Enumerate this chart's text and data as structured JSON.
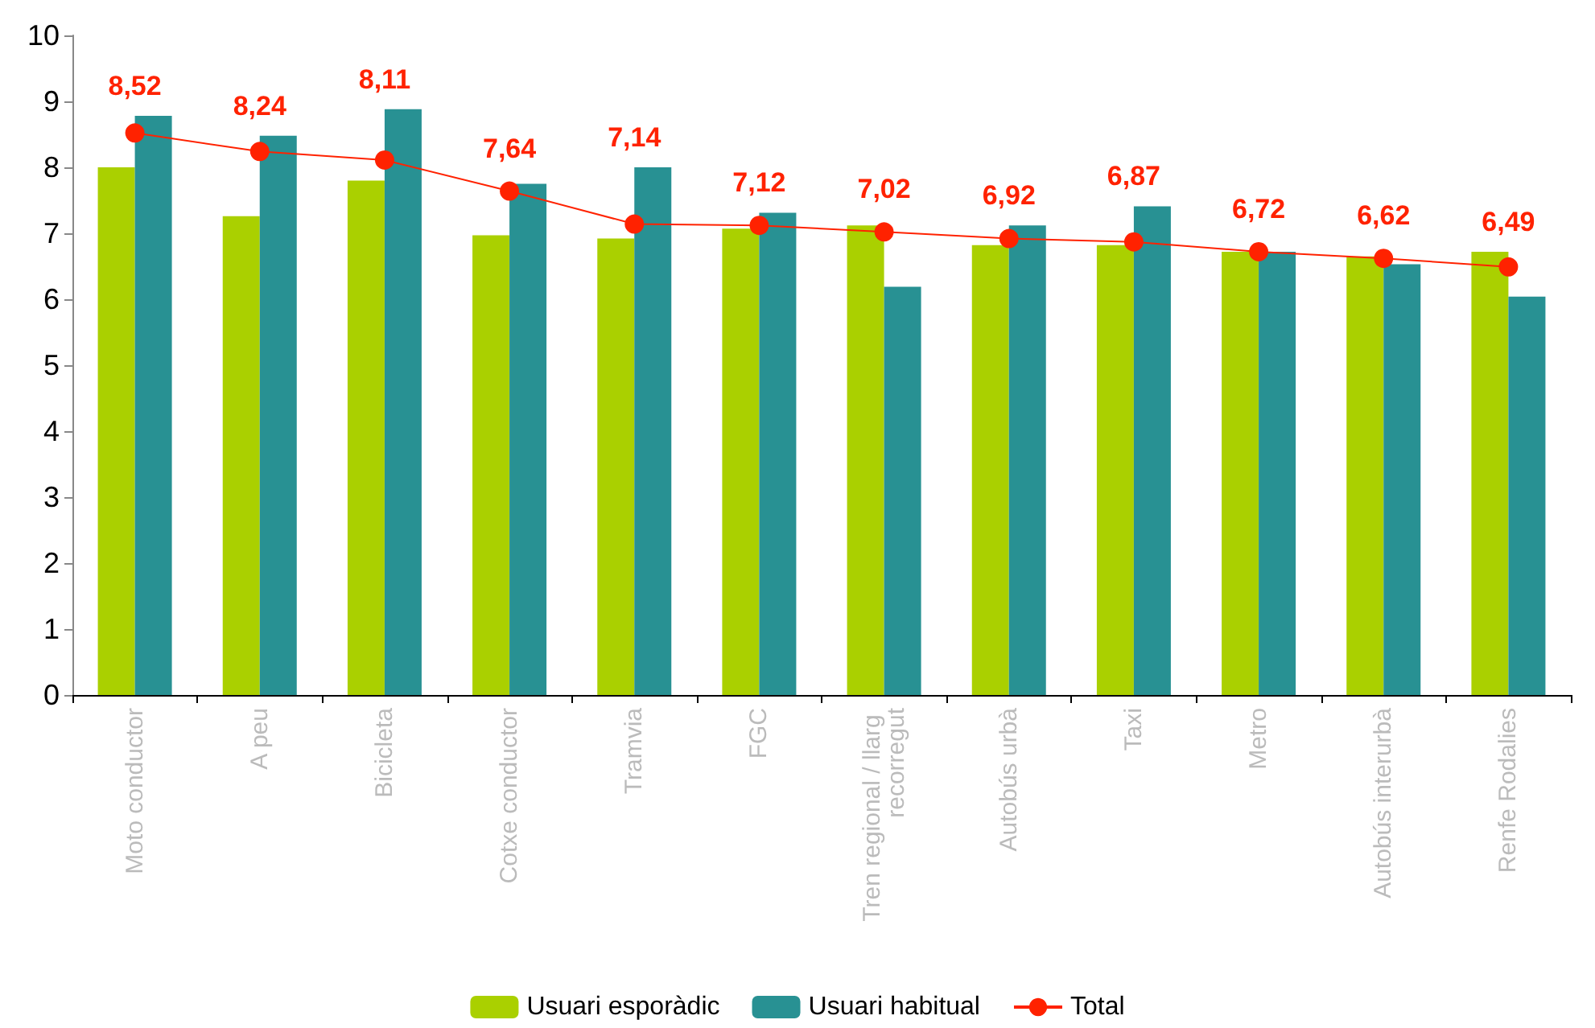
{
  "chart_data": {
    "type": "bar",
    "categories": [
      "Moto conductor",
      "A peu",
      "Bicicleta",
      "Cotxe conductor",
      "Tramvia",
      "FGC",
      "Tren regional / llarg recorregut",
      "Autobús urbà",
      "Taxi",
      "Metro",
      "Autobús interurbà",
      "Renfe Rodalies"
    ],
    "series": [
      {
        "name": "Usuari esporàdic",
        "color": "#aad000",
        "values": [
          8.0,
          7.26,
          7.8,
          6.97,
          6.92,
          7.07,
          7.12,
          6.82,
          6.82,
          6.72,
          6.65,
          6.72
        ]
      },
      {
        "name": "Usuari habitual",
        "color": "#289193",
        "values": [
          8.78,
          8.48,
          8.88,
          7.75,
          8.0,
          7.31,
          6.19,
          7.12,
          7.41,
          6.72,
          6.53,
          6.04
        ]
      },
      {
        "name": "Total",
        "type": "line",
        "color": "#ff2200",
        "marker": "circle",
        "values": [
          8.52,
          8.24,
          8.11,
          7.64,
          7.14,
          7.12,
          7.02,
          6.92,
          6.87,
          6.72,
          6.62,
          6.49
        ],
        "value_labels": [
          "8,52",
          "8,24",
          "8,11",
          "7,64",
          "7,14",
          "7,12",
          "7,02",
          "6,92",
          "6,87",
          "6,72",
          "6,62",
          "6,49"
        ]
      }
    ],
    "ylim": [
      0,
      10
    ],
    "yticks": [
      0,
      1,
      2,
      3,
      4,
      5,
      6,
      7,
      8,
      9,
      10
    ],
    "grid": false,
    "legend": "bottom"
  }
}
